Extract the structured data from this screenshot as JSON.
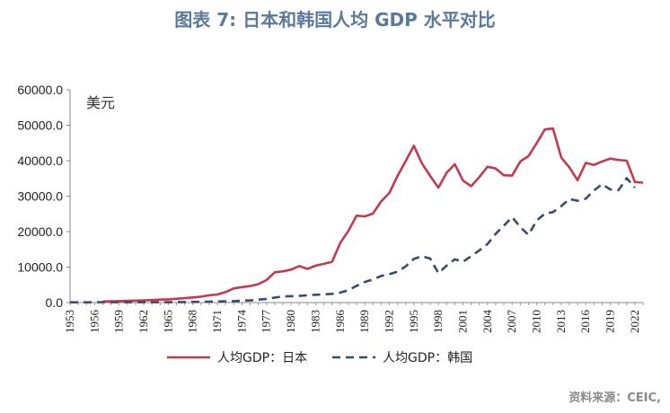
{
  "title": "图表 7:  日本和韩国人均 GDP 水平对比",
  "source": "资料来源：CEIC,",
  "chart_data": {
    "type": "line",
    "unit_label": "美元",
    "y_ticks": [
      "0.0",
      "10000.0",
      "20000.0",
      "30000.0",
      "40000.0",
      "50000.0",
      "60000.0"
    ],
    "ylim": [
      0,
      60000
    ],
    "xlim": [
      1953,
      2023
    ],
    "x_ticks": [
      1953,
      1956,
      1959,
      1962,
      1965,
      1968,
      1971,
      1974,
      1977,
      1980,
      1983,
      1986,
      1989,
      1992,
      1995,
      1998,
      2001,
      2004,
      2007,
      2010,
      2013,
      2016,
      2019,
      2022
    ],
    "series": [
      {
        "name": "人均GDP：日本",
        "color": "#c23a4f",
        "style": "solid",
        "x": [
          1957,
          1958,
          1959,
          1960,
          1961,
          1962,
          1963,
          1964,
          1965,
          1966,
          1967,
          1968,
          1969,
          1970,
          1971,
          1972,
          1973,
          1974,
          1975,
          1976,
          1977,
          1978,
          1979,
          1980,
          1981,
          1982,
          1983,
          1984,
          1985,
          1986,
          1987,
          1988,
          1989,
          1990,
          1991,
          1992,
          1993,
          1994,
          1995,
          1996,
          1997,
          1998,
          1999,
          2000,
          2001,
          2002,
          2003,
          2004,
          2005,
          2006,
          2007,
          2008,
          2009,
          2010,
          2011,
          2012,
          2013,
          2014,
          2015,
          2016,
          2017,
          2018,
          2019,
          2020,
          2021,
          2022,
          2023
        ],
        "values": [
          300,
          350,
          400,
          480,
          560,
          620,
          720,
          830,
          920,
          1060,
          1230,
          1450,
          1670,
          2040,
          2270,
          2950,
          3990,
          4350,
          4670,
          5200,
          6330,
          8520,
          8800,
          9300,
          10300,
          9500,
          10400,
          10900,
          11500,
          16800,
          20200,
          24500,
          24300,
          25100,
          28500,
          30900,
          35700,
          39900,
          44200,
          39200,
          35700,
          32400,
          36600,
          39000,
          34400,
          32800,
          35400,
          38300,
          37800,
          35900,
          35800,
          39800,
          41300,
          44900,
          48800,
          49100,
          40900,
          38100,
          34500,
          39400,
          38800,
          39800,
          40600,
          40200,
          40000,
          34000,
          33800
        ]
      },
      {
        "name": "人均GDP：韩国",
        "color": "#384d6b",
        "style": "dashed",
        "x": [
          1953,
          1955,
          1957,
          1959,
          1961,
          1963,
          1965,
          1967,
          1969,
          1971,
          1973,
          1975,
          1977,
          1979,
          1981,
          1983,
          1985,
          1986,
          1987,
          1988,
          1989,
          1990,
          1991,
          1992,
          1993,
          1994,
          1995,
          1996,
          1997,
          1998,
          1999,
          2000,
          2001,
          2002,
          2003,
          2004,
          2005,
          2006,
          2007,
          2008,
          2009,
          2010,
          2011,
          2012,
          2013,
          2014,
          2015,
          2016,
          2017,
          2018,
          2019,
          2020,
          2021,
          2022
        ],
        "values": [
          70,
          80,
          90,
          90,
          90,
          100,
          110,
          140,
          210,
          300,
          400,
          610,
          1050,
          1750,
          1880,
          2200,
          2460,
          2800,
          3500,
          4700,
          5800,
          6500,
          7500,
          8000,
          8700,
          10200,
          12300,
          13100,
          12400,
          8300,
          10400,
          12200,
          11500,
          13100,
          14700,
          16500,
          19400,
          21700,
          24100,
          21300,
          19100,
          23100,
          25100,
          25500,
          27200,
          29200,
          28700,
          29300,
          31600,
          33400,
          31900,
          31700,
          35100,
          32400
        ]
      }
    ]
  }
}
